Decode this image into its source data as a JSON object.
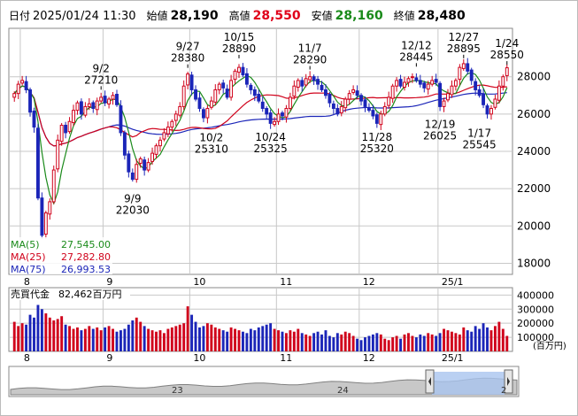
{
  "header": {
    "date_label": "日付",
    "datetime": "2025/01/24 11:30",
    "open_label": "始値",
    "open": "28,190",
    "high_label": "高値",
    "high": "28,550",
    "low_label": "安値",
    "low": "28,160",
    "close_label": "終値",
    "close": "28,480"
  },
  "colors": {
    "up": "#d0021b",
    "down": "#1b25b8",
    "ma5": "#1a8a1a",
    "ma25": "#d0021b",
    "ma75": "#1b25b8",
    "grid": "#c8c8c8"
  },
  "legend": {
    "ma5_label": "MA(5)",
    "ma5_value": "27,545.00",
    "ma25_label": "MA(25)",
    "ma25_value": "27,282.80",
    "ma75_label": "MA(75)",
    "ma75_value": "26,993.53"
  },
  "volume": {
    "title": "売買代金",
    "total": "82,462百万円",
    "unit": "(百万円)",
    "ticks": [
      "400000",
      "300000",
      "200000",
      "100000"
    ]
  },
  "navigator": {
    "labels": [
      "23",
      "24",
      "2"
    ]
  },
  "chart_data": {
    "type": "candlestick",
    "x_tick_labels": [
      "8",
      "9",
      "10",
      "11",
      "12",
      "25/1"
    ],
    "y_tick_labels": [
      "28000",
      "26000",
      "24000",
      "22000",
      "20000",
      "18000"
    ],
    "ylim": [
      17500,
      30500
    ],
    "grid": true,
    "annotations": [
      {
        "label": "9/2",
        "value": "27210"
      },
      {
        "label": "9/9",
        "value": "22030"
      },
      {
        "label": "9/27",
        "value": "28380"
      },
      {
        "label": "10/2",
        "value": "25310"
      },
      {
        "label": "10/15",
        "value": "28890"
      },
      {
        "label": "10/24",
        "value": "25325"
      },
      {
        "label": "11/7",
        "value": "28290"
      },
      {
        "label": "11/28",
        "value": "25320"
      },
      {
        "label": "12/12",
        "value": "28445"
      },
      {
        "label": "12/19",
        "value": "26025"
      },
      {
        "label": "12/27",
        "value": "28895"
      },
      {
        "label": "1/17",
        "value": "25545"
      },
      {
        "label": "1/24",
        "value": "28550"
      }
    ],
    "close_series": [
      27100,
      27600,
      27800,
      27300,
      26100,
      25300,
      21500,
      19500,
      20700,
      21300,
      23000,
      24600,
      25400,
      25000,
      25600,
      26200,
      26600,
      26000,
      26400,
      26550,
      26300,
      26700,
      26900,
      26600,
      26800,
      27000,
      26500,
      25000,
      23800,
      22900,
      22500,
      23300,
      23600,
      23000,
      23400,
      23900,
      24300,
      24600,
      25000,
      25300,
      25600,
      26000,
      26400,
      27500,
      28150,
      27300,
      26800,
      26300,
      25800,
      26300,
      26700,
      27300,
      27600,
      27400,
      26900,
      27800,
      28300,
      28500,
      28100,
      27600,
      27300,
      27000,
      26700,
      26300,
      26000,
      25500,
      25600,
      26000,
      25900,
      26300,
      26900,
      27500,
      27800,
      27500,
      27900,
      28000,
      27800,
      27600,
      27300,
      27000,
      26600,
      26300,
      26000,
      26400,
      26800,
      27100,
      27300,
      27000,
      26700,
      26400,
      26200,
      25900,
      25500,
      26000,
      26400,
      26900,
      27500,
      27800,
      27500,
      27700,
      27900,
      28000,
      27800,
      27600,
      27400,
      27600,
      27800,
      27700,
      26400,
      26700,
      27100,
      27500,
      27800,
      28500,
      28700,
      28300,
      27800,
      27300,
      27000,
      26500,
      26000,
      26300,
      26800,
      27500,
      28000,
      28480
    ],
    "volume_series": [
      210,
      180,
      200,
      190,
      260,
      240,
      330,
      300,
      270,
      240,
      220,
      230,
      250,
      190,
      180,
      160,
      170,
      150,
      160,
      180,
      160,
      170,
      150,
      170,
      180,
      160,
      140,
      150,
      160,
      190,
      220,
      240,
      210,
      180,
      160,
      150,
      140,
      150,
      130,
      160,
      170,
      180,
      190,
      200,
      320,
      260,
      210,
      170,
      180,
      200,
      190,
      170,
      160,
      150,
      140,
      170,
      160,
      150,
      140,
      130,
      160,
      150,
      170,
      180,
      190,
      200,
      160,
      150,
      140,
      130,
      150,
      140,
      160,
      130,
      120,
      110,
      130,
      140,
      120,
      150,
      110,
      100,
      130,
      120,
      140,
      130,
      110,
      90,
      80,
      100,
      110,
      120,
      130,
      120,
      90,
      80,
      100,
      110,
      90,
      120,
      130,
      110,
      100,
      120,
      110,
      130,
      120,
      110,
      130,
      160,
      150,
      140,
      130,
      120,
      170,
      150,
      140,
      180,
      160,
      200,
      170,
      150,
      180,
      210,
      160,
      110
    ]
  }
}
